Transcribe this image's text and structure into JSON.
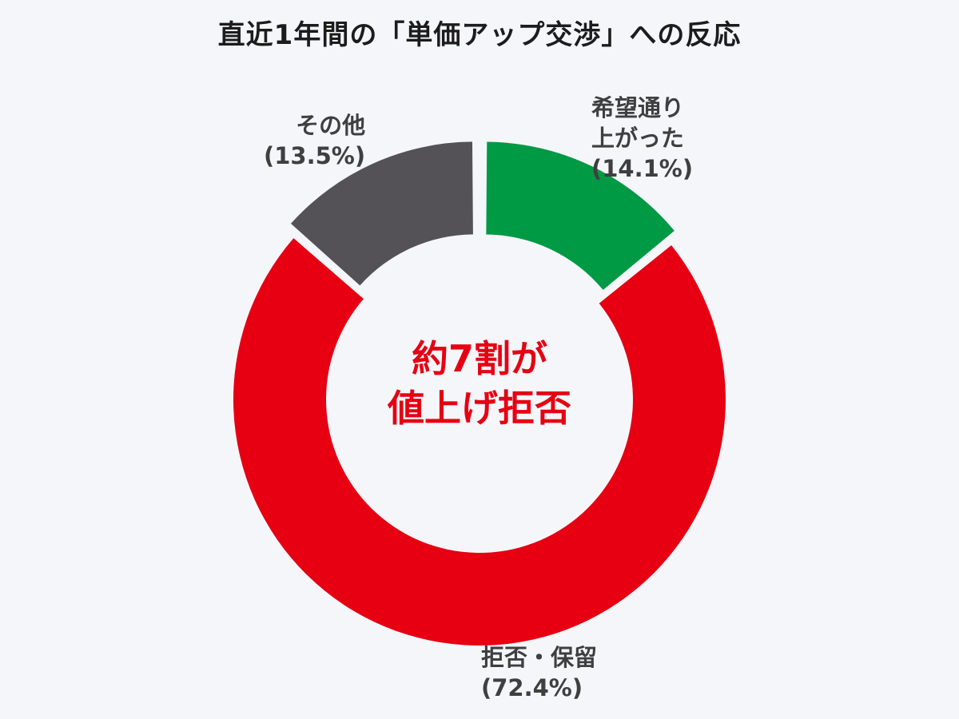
{
  "chart_data": {
    "type": "pie",
    "variant": "donut",
    "title": "直近1年間の「単価アップ交渉」への反応",
    "slices": [
      {
        "key": "raised",
        "label_lines": [
          "希望通り",
          "上がった"
        ],
        "value": 14.1,
        "value_text": "(14.1%)",
        "color": "#009944",
        "exploded": true
      },
      {
        "key": "refused",
        "label_lines": [
          "拒否・保留"
        ],
        "value": 72.4,
        "value_text": "(72.4%)",
        "color": "#e60012",
        "exploded": false
      },
      {
        "key": "other",
        "label_lines": [
          "その他"
        ],
        "value": 13.5,
        "value_text": "(13.5%)",
        "color": "#545256",
        "exploded": true
      }
    ],
    "center_label": [
      "約7割が",
      "値上げ拒否"
    ],
    "center_label_color": "#e60012",
    "start": "12 o'clock",
    "direction": "clockwise"
  }
}
